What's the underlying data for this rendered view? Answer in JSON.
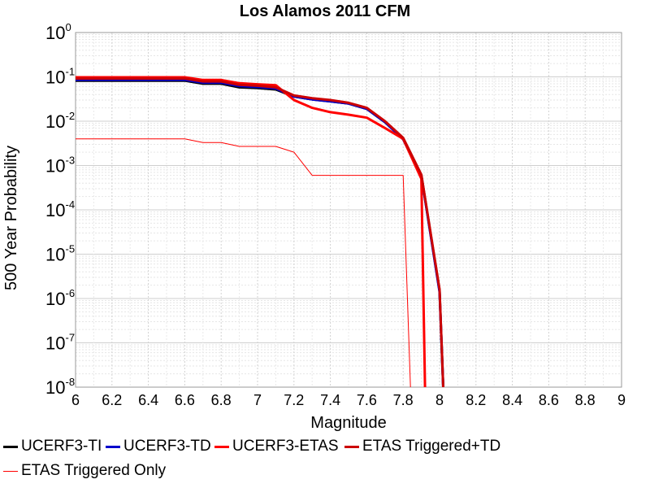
{
  "chart_data": {
    "type": "line",
    "title": "Los Alamos 2011 CFM",
    "xlabel": "Magnitude",
    "ylabel": "500 Year Probability",
    "xlim": [
      6,
      9
    ],
    "ylim": [
      1e-08,
      1
    ],
    "yscale": "log",
    "grid": true,
    "legend_position": "bottom",
    "x_ticks": [
      "6",
      "6.2",
      "6.4",
      "6.6",
      "6.8",
      "7",
      "7.2",
      "7.4",
      "7.6",
      "7.8",
      "8",
      "8.2",
      "8.4",
      "8.6",
      "8.8",
      "9"
    ],
    "y_ticks": [
      {
        "base": "10",
        "exp": "0"
      },
      {
        "base": "10",
        "exp": "-1"
      },
      {
        "base": "10",
        "exp": "-2"
      },
      {
        "base": "10",
        "exp": "-3"
      },
      {
        "base": "10",
        "exp": "-4"
      },
      {
        "base": "10",
        "exp": "-5"
      },
      {
        "base": "10",
        "exp": "-6"
      },
      {
        "base": "10",
        "exp": "-7"
      },
      {
        "base": "10",
        "exp": "-8"
      }
    ],
    "series": [
      {
        "name": "UCERF3-TI",
        "color": "#000000",
        "width": 3,
        "x": [
          6.0,
          6.1,
          6.2,
          6.3,
          6.4,
          6.5,
          6.6,
          6.7,
          6.8,
          6.9,
          7.0,
          7.1,
          7.2,
          7.3,
          7.4,
          7.5,
          7.6,
          7.7,
          7.8,
          7.9,
          8.0,
          8.02
        ],
        "y": [
          0.082,
          0.082,
          0.082,
          0.082,
          0.082,
          0.082,
          0.082,
          0.07,
          0.07,
          0.058,
          0.056,
          0.052,
          0.036,
          0.031,
          0.028,
          0.025,
          0.019,
          0.0095,
          0.004,
          0.0006,
          1.5e-06,
          1e-08
        ]
      },
      {
        "name": "UCERF3-TD",
        "color": "#0000cc",
        "width": 3,
        "x": [
          6.0,
          6.1,
          6.2,
          6.3,
          6.4,
          6.5,
          6.6,
          6.7,
          6.8,
          6.9,
          7.0,
          7.1,
          7.2,
          7.3,
          7.4,
          7.5,
          7.6,
          7.7,
          7.8,
          7.9,
          8.0,
          8.02
        ],
        "y": [
          0.086,
          0.086,
          0.086,
          0.086,
          0.086,
          0.086,
          0.086,
          0.074,
          0.074,
          0.062,
          0.059,
          0.055,
          0.036,
          0.031,
          0.028,
          0.025,
          0.019,
          0.0095,
          0.0039,
          0.00058,
          1.4e-06,
          1e-08
        ]
      },
      {
        "name": "UCERF3-ETAS",
        "color": "#ff0000",
        "width": 3,
        "x": [
          6.0,
          6.1,
          6.2,
          6.3,
          6.4,
          6.5,
          6.6,
          6.7,
          6.8,
          6.9,
          7.0,
          7.1,
          7.2,
          7.3,
          7.4,
          7.5,
          7.6,
          7.7,
          7.8,
          7.9,
          7.92
        ],
        "y": [
          0.098,
          0.098,
          0.098,
          0.098,
          0.098,
          0.098,
          0.098,
          0.085,
          0.085,
          0.072,
          0.068,
          0.065,
          0.03,
          0.02,
          0.016,
          0.014,
          0.012,
          0.007,
          0.004,
          0.0005,
          1e-08
        ]
      },
      {
        "name": "ETAS Triggered+TD",
        "color": "#cc0000",
        "width": 3,
        "x": [
          6.0,
          6.1,
          6.2,
          6.3,
          6.4,
          6.5,
          6.6,
          6.7,
          6.8,
          6.9,
          7.0,
          7.1,
          7.2,
          7.3,
          7.4,
          7.5,
          7.6,
          7.7,
          7.8,
          7.9,
          8.0,
          8.02
        ],
        "y": [
          0.092,
          0.092,
          0.092,
          0.092,
          0.092,
          0.092,
          0.092,
          0.079,
          0.079,
          0.066,
          0.063,
          0.058,
          0.038,
          0.033,
          0.03,
          0.026,
          0.02,
          0.01,
          0.0042,
          0.00062,
          1.6e-06,
          1e-08
        ]
      },
      {
        "name": "ETAS Triggered Only",
        "color": "#ff0000",
        "width": 1,
        "x": [
          6.0,
          6.1,
          6.2,
          6.3,
          6.4,
          6.5,
          6.6,
          6.7,
          6.8,
          6.9,
          7.0,
          7.1,
          7.2,
          7.3,
          7.4,
          7.5,
          7.6,
          7.7,
          7.8,
          7.84
        ],
        "y": [
          0.004,
          0.004,
          0.004,
          0.004,
          0.004,
          0.004,
          0.004,
          0.0033,
          0.0033,
          0.0027,
          0.0027,
          0.0027,
          0.002,
          0.0006,
          0.0006,
          0.0006,
          0.0006,
          0.0006,
          0.0006,
          1e-08
        ]
      }
    ]
  }
}
